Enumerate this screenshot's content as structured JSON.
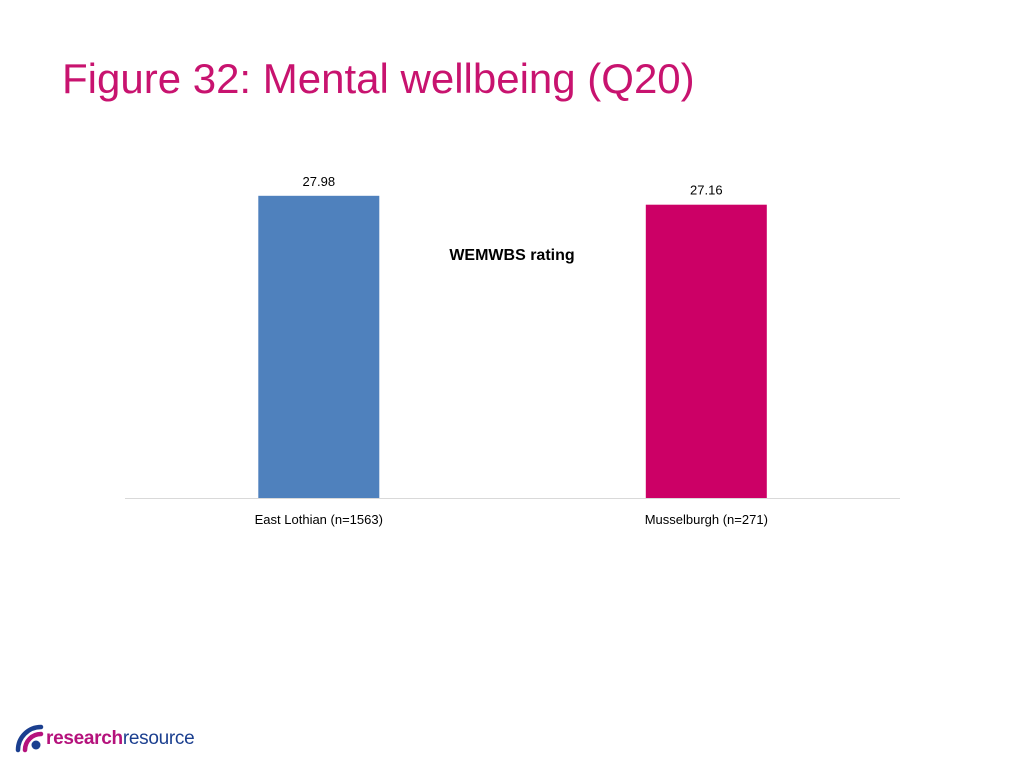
{
  "slide": {
    "title": "Figure 32: Mental wellbeing (Q20)",
    "title_color": "#c8136f"
  },
  "chart_data": {
    "type": "bar",
    "title": "WEMWBS rating",
    "categories": [
      "East Lothian (n=1563)",
      "Musselburgh (n=271)"
    ],
    "values": [
      27.98,
      27.16
    ],
    "data_labels": [
      "27.98",
      "27.16"
    ],
    "bar_colors": [
      "#4f81bd",
      "#cc0066"
    ],
    "ylim": [
      0,
      30
    ],
    "grid": false,
    "legend": "none",
    "xlabel": "",
    "ylabel": ""
  },
  "logo": {
    "text_part1": "research",
    "text_part2": "resource",
    "color_part1": "#b5127c",
    "color_part2": "#1b3f8f",
    "mark_icon": "research-resource-logo-mark"
  }
}
